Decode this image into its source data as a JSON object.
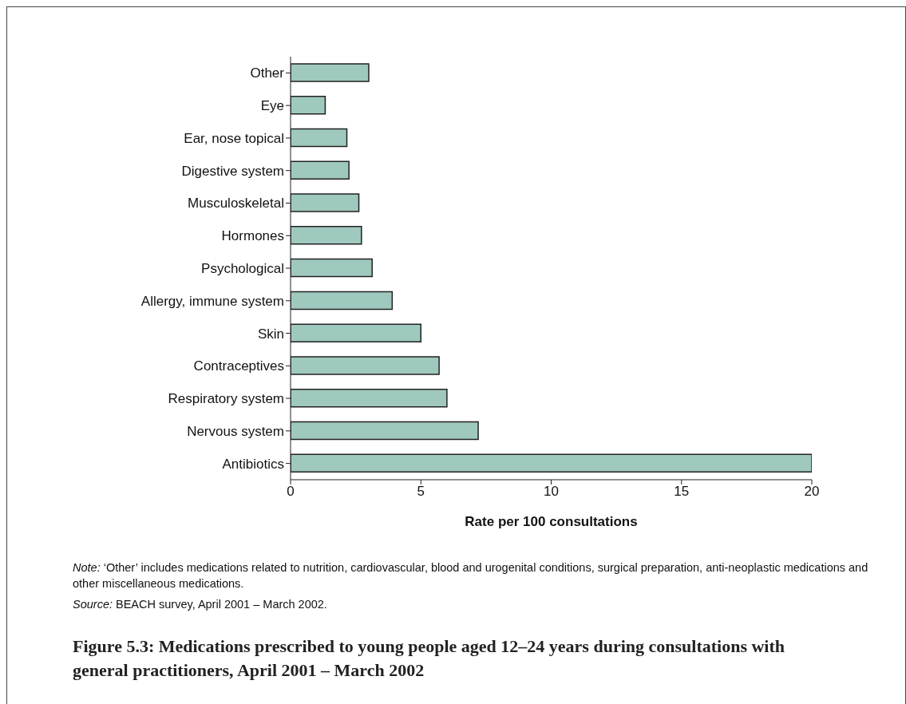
{
  "chart_data": {
    "type": "bar",
    "orientation": "horizontal",
    "title": "Figure 5.3: Medications prescribed to young people aged 12–24 years during consultations with general practitioners, April 2001 – March 2002",
    "xlabel": "Rate per 100 consultations",
    "categories": [
      "Other",
      "Eye",
      "Ear, nose topical",
      "Digestive system",
      "Musculoskeletal",
      "Hormones",
      "Psychological",
      "Allergy, immune system",
      "Skin",
      "Contraceptives",
      "Respiratory system",
      "Nervous system",
      "Antibiotics"
    ],
    "values": [
      3.0,
      1.33,
      2.16,
      2.24,
      2.62,
      2.72,
      3.13,
      3.9,
      5.0,
      5.7,
      6.0,
      7.2,
      20.0
    ],
    "color": "#9fc8be",
    "xlim": [
      0,
      20
    ],
    "xticks": [
      0,
      5,
      10,
      15,
      20
    ],
    "grid": false,
    "legend": false,
    "annotations": [
      "Note: ‘Other’ includes medications related to nutrition, cardiovascular, blood and urogenital conditions, surgical preparation, anti-neoplastic medications and other miscellaneous medications.",
      "Source: BEACH survey, April 2001 – March 2002."
    ]
  }
}
